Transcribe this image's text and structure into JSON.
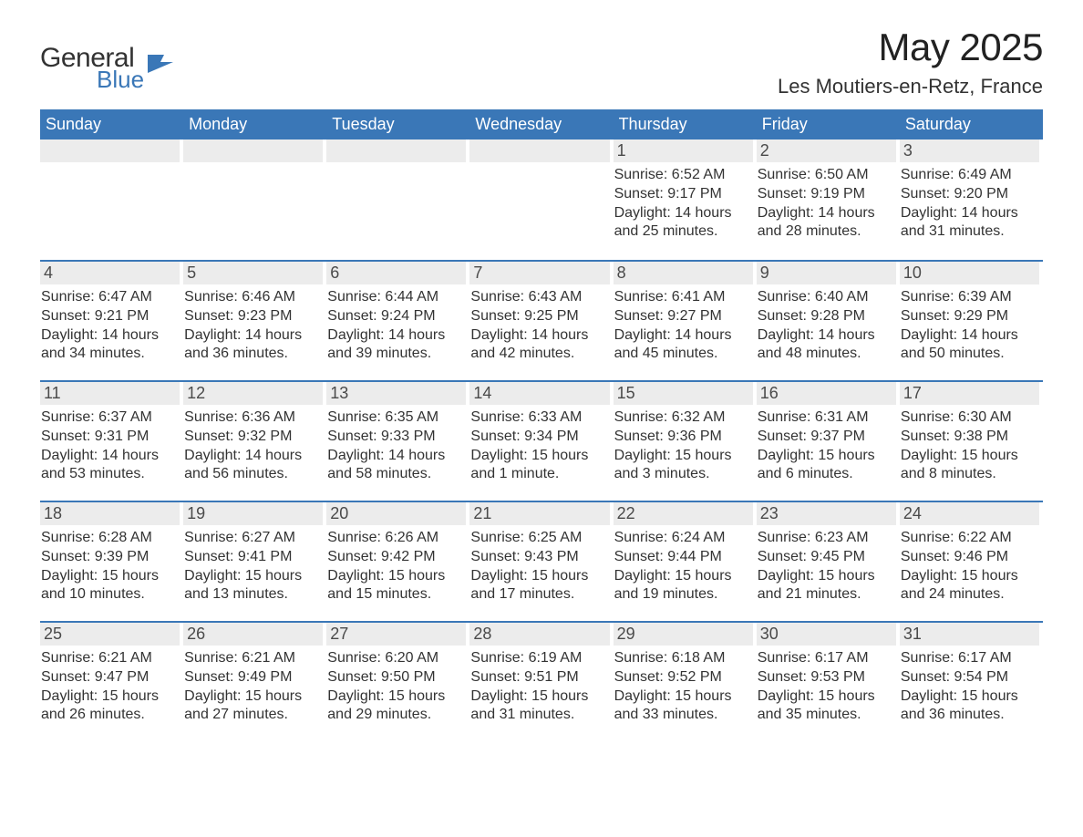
{
  "logo": {
    "general": "General",
    "blue": "Blue",
    "icon_color": "#3a77b7"
  },
  "title": "May 2025",
  "location": "Les Moutiers-en-Retz, France",
  "header_bg": "#3a77b7",
  "header_text": "#ffffff",
  "daynum_bg": "#ececec",
  "border_color": "#3a77b7",
  "weekdays": [
    "Sunday",
    "Monday",
    "Tuesday",
    "Wednesday",
    "Thursday",
    "Friday",
    "Saturday"
  ],
  "weeks": [
    [
      {
        "num": "",
        "empty": true
      },
      {
        "num": "",
        "empty": true
      },
      {
        "num": "",
        "empty": true
      },
      {
        "num": "",
        "empty": true
      },
      {
        "num": "1",
        "sunrise": "6:52 AM",
        "sunset": "9:17 PM",
        "daylight": "14 hours and 25 minutes."
      },
      {
        "num": "2",
        "sunrise": "6:50 AM",
        "sunset": "9:19 PM",
        "daylight": "14 hours and 28 minutes."
      },
      {
        "num": "3",
        "sunrise": "6:49 AM",
        "sunset": "9:20 PM",
        "daylight": "14 hours and 31 minutes."
      }
    ],
    [
      {
        "num": "4",
        "sunrise": "6:47 AM",
        "sunset": "9:21 PM",
        "daylight": "14 hours and 34 minutes."
      },
      {
        "num": "5",
        "sunrise": "6:46 AM",
        "sunset": "9:23 PM",
        "daylight": "14 hours and 36 minutes."
      },
      {
        "num": "6",
        "sunrise": "6:44 AM",
        "sunset": "9:24 PM",
        "daylight": "14 hours and 39 minutes."
      },
      {
        "num": "7",
        "sunrise": "6:43 AM",
        "sunset": "9:25 PM",
        "daylight": "14 hours and 42 minutes."
      },
      {
        "num": "8",
        "sunrise": "6:41 AM",
        "sunset": "9:27 PM",
        "daylight": "14 hours and 45 minutes."
      },
      {
        "num": "9",
        "sunrise": "6:40 AM",
        "sunset": "9:28 PM",
        "daylight": "14 hours and 48 minutes."
      },
      {
        "num": "10",
        "sunrise": "6:39 AM",
        "sunset": "9:29 PM",
        "daylight": "14 hours and 50 minutes."
      }
    ],
    [
      {
        "num": "11",
        "sunrise": "6:37 AM",
        "sunset": "9:31 PM",
        "daylight": "14 hours and 53 minutes."
      },
      {
        "num": "12",
        "sunrise": "6:36 AM",
        "sunset": "9:32 PM",
        "daylight": "14 hours and 56 minutes."
      },
      {
        "num": "13",
        "sunrise": "6:35 AM",
        "sunset": "9:33 PM",
        "daylight": "14 hours and 58 minutes."
      },
      {
        "num": "14",
        "sunrise": "6:33 AM",
        "sunset": "9:34 PM",
        "daylight": "15 hours and 1 minute."
      },
      {
        "num": "15",
        "sunrise": "6:32 AM",
        "sunset": "9:36 PM",
        "daylight": "15 hours and 3 minutes."
      },
      {
        "num": "16",
        "sunrise": "6:31 AM",
        "sunset": "9:37 PM",
        "daylight": "15 hours and 6 minutes."
      },
      {
        "num": "17",
        "sunrise": "6:30 AM",
        "sunset": "9:38 PM",
        "daylight": "15 hours and 8 minutes."
      }
    ],
    [
      {
        "num": "18",
        "sunrise": "6:28 AM",
        "sunset": "9:39 PM",
        "daylight": "15 hours and 10 minutes."
      },
      {
        "num": "19",
        "sunrise": "6:27 AM",
        "sunset": "9:41 PM",
        "daylight": "15 hours and 13 minutes."
      },
      {
        "num": "20",
        "sunrise": "6:26 AM",
        "sunset": "9:42 PM",
        "daylight": "15 hours and 15 minutes."
      },
      {
        "num": "21",
        "sunrise": "6:25 AM",
        "sunset": "9:43 PM",
        "daylight": "15 hours and 17 minutes."
      },
      {
        "num": "22",
        "sunrise": "6:24 AM",
        "sunset": "9:44 PM",
        "daylight": "15 hours and 19 minutes."
      },
      {
        "num": "23",
        "sunrise": "6:23 AM",
        "sunset": "9:45 PM",
        "daylight": "15 hours and 21 minutes."
      },
      {
        "num": "24",
        "sunrise": "6:22 AM",
        "sunset": "9:46 PM",
        "daylight": "15 hours and 24 minutes."
      }
    ],
    [
      {
        "num": "25",
        "sunrise": "6:21 AM",
        "sunset": "9:47 PM",
        "daylight": "15 hours and 26 minutes."
      },
      {
        "num": "26",
        "sunrise": "6:21 AM",
        "sunset": "9:49 PM",
        "daylight": "15 hours and 27 minutes."
      },
      {
        "num": "27",
        "sunrise": "6:20 AM",
        "sunset": "9:50 PM",
        "daylight": "15 hours and 29 minutes."
      },
      {
        "num": "28",
        "sunrise": "6:19 AM",
        "sunset": "9:51 PM",
        "daylight": "15 hours and 31 minutes."
      },
      {
        "num": "29",
        "sunrise": "6:18 AM",
        "sunset": "9:52 PM",
        "daylight": "15 hours and 33 minutes."
      },
      {
        "num": "30",
        "sunrise": "6:17 AM",
        "sunset": "9:53 PM",
        "daylight": "15 hours and 35 minutes."
      },
      {
        "num": "31",
        "sunrise": "6:17 AM",
        "sunset": "9:54 PM",
        "daylight": "15 hours and 36 minutes."
      }
    ]
  ],
  "labels": {
    "sunrise": "Sunrise: ",
    "sunset": "Sunset: ",
    "daylight": "Daylight: "
  }
}
